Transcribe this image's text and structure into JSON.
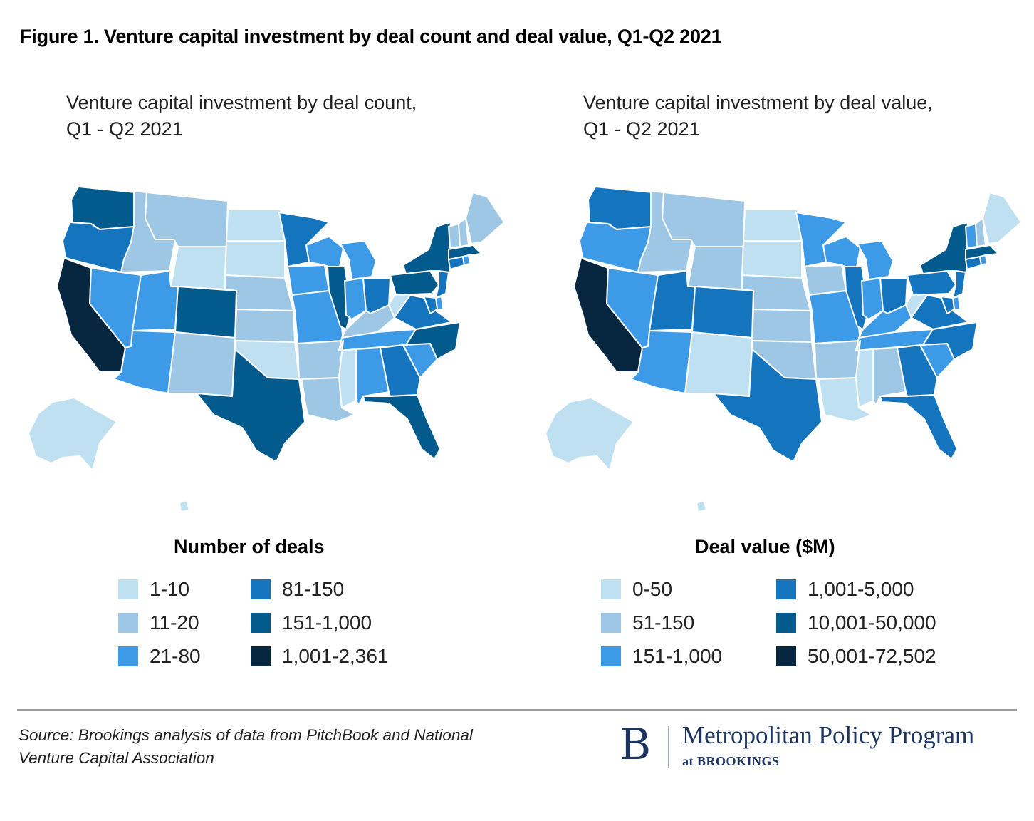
{
  "figure_title": "Figure 1. Venture capital investment by deal count and deal value, Q1-Q2 2021",
  "maps": [
    {
      "subtitle_line1": "Venture capital investment by deal count,",
      "subtitle_line2": "Q1 - Q2 2021",
      "legend_title": "Number of deals",
      "legend": [
        {
          "label": "1-10",
          "color": "#bfe0f1"
        },
        {
          "label": "11-20",
          "color": "#9dc7e4"
        },
        {
          "label": "21-80",
          "color": "#3d9ae6"
        },
        {
          "label": "81-150",
          "color": "#1474bd"
        },
        {
          "label": "151-1,000",
          "color": "#035a8c"
        },
        {
          "label": "1,001-2,361",
          "color": "#06273f"
        }
      ],
      "state_bins": {
        "wa": 4,
        "or": 3,
        "ca": 5,
        "nv": 2,
        "id": 1,
        "mt": 1,
        "wy": 0,
        "ut": 2,
        "az": 2,
        "co": 4,
        "nm": 1,
        "nd": 0,
        "sd": 0,
        "ne": 1,
        "ks": 1,
        "ok": 0,
        "tx": 4,
        "mn": 3,
        "ia": 2,
        "mo": 2,
        "ar": 1,
        "la": 1,
        "wi": 2,
        "il": 4,
        "mi": 2,
        "in": 2,
        "oh": 3,
        "ky": 1,
        "tn": 2,
        "ms": 0,
        "al": 2,
        "ga": 3,
        "fl": 4,
        "sc": 2,
        "nc": 4,
        "va": 3,
        "wv": 0,
        "pa": 4,
        "ny": 4,
        "me": 1,
        "vt": 1,
        "nh": 1,
        "ma": 4,
        "ct": 3,
        "ri": 2,
        "nj": 3,
        "de": 2,
        "md": 3,
        "ak": 0,
        "hi": 0
      }
    },
    {
      "subtitle_line1": "Venture capital investment by deal value,",
      "subtitle_line2": "Q1 - Q2 2021",
      "legend_title": "Deal value ($M)",
      "legend": [
        {
          "label": "0-50",
          "color": "#bfe0f1"
        },
        {
          "label": "51-150",
          "color": "#9dc7e4"
        },
        {
          "label": "151-1,000",
          "color": "#3d9ae6"
        },
        {
          "label": "1,001-5,000",
          "color": "#1474bd"
        },
        {
          "label": "10,001-50,000",
          "color": "#035a8c"
        },
        {
          "label": "50,001-72,502",
          "color": "#06273f"
        }
      ],
      "state_bins": {
        "wa": 3,
        "or": 2,
        "ca": 5,
        "nv": 2,
        "id": 1,
        "mt": 1,
        "wy": 1,
        "ut": 3,
        "az": 2,
        "co": 3,
        "nm": 0,
        "nd": 0,
        "sd": 0,
        "ne": 1,
        "ks": 1,
        "ok": 1,
        "tx": 3,
        "mn": 2,
        "ia": 1,
        "mo": 2,
        "ar": 1,
        "la": 0,
        "wi": 2,
        "il": 3,
        "mi": 2,
        "in": 2,
        "oh": 3,
        "ky": 2,
        "tn": 2,
        "ms": 0,
        "al": 1,
        "ga": 3,
        "fl": 3,
        "sc": 2,
        "nc": 3,
        "va": 3,
        "wv": 0,
        "pa": 3,
        "ny": 4,
        "me": 0,
        "vt": 2,
        "nh": 1,
        "ma": 4,
        "ct": 3,
        "ri": 2,
        "nj": 3,
        "de": 2,
        "md": 3,
        "ak": 0,
        "hi": 0
      }
    }
  ],
  "source_line1": "Source: Brookings analysis of data from PitchBook and National",
  "source_line2": "Venture Capital Association",
  "logo": {
    "mark": "B",
    "name": "Metropolitan Policy Program",
    "sub": "at BROOKINGS"
  }
}
